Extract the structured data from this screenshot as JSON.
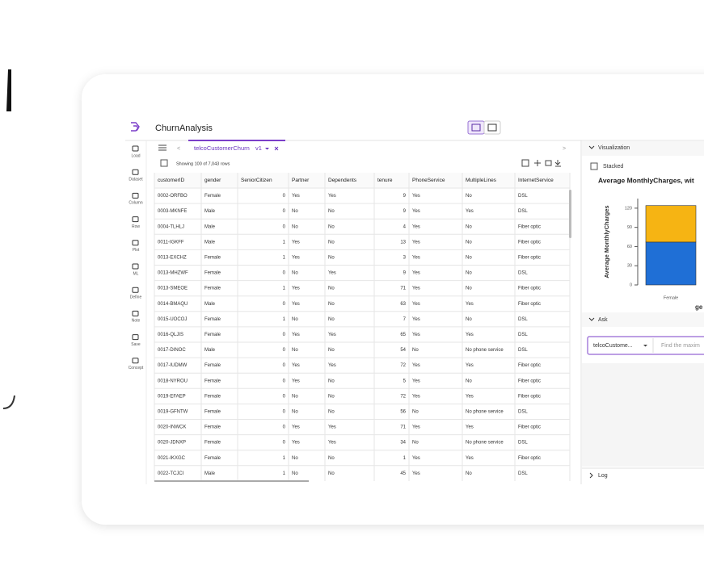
{
  "app": {
    "title": "ChurnAnalysis"
  },
  "sidebar": [
    "Load",
    "Dataset",
    "Column",
    "Row",
    "Plot",
    "ML",
    "Define",
    "Note",
    "Save",
    "Concept"
  ],
  "tab": {
    "name": "telcoCustomerChurn",
    "version": "v1"
  },
  "table": {
    "status": "Showing 100 of 7,043 rows",
    "columns": [
      "customerID",
      "gender",
      "SeniorCitizen",
      "Partner",
      "Dependents",
      "tenure",
      "PhoneService",
      "MultipleLines",
      "InternetService"
    ],
    "rows": [
      [
        "0002-ORFBO",
        "Female",
        0,
        "Yes",
        "Yes",
        9,
        "Yes",
        "No",
        "DSL"
      ],
      [
        "0003-MKNFE",
        "Male",
        0,
        "No",
        "No",
        9,
        "Yes",
        "Yes",
        "DSL"
      ],
      [
        "0004-TLHLJ",
        "Male",
        0,
        "No",
        "No",
        4,
        "Yes",
        "No",
        "Fiber optic"
      ],
      [
        "0011-IGKFF",
        "Male",
        1,
        "Yes",
        "No",
        13,
        "Yes",
        "No",
        "Fiber optic"
      ],
      [
        "0013-EXCHZ",
        "Female",
        1,
        "Yes",
        "No",
        3,
        "Yes",
        "No",
        "Fiber optic"
      ],
      [
        "0013-MHZWF",
        "Female",
        0,
        "No",
        "Yes",
        9,
        "Yes",
        "No",
        "DSL"
      ],
      [
        "0013-SMEOE",
        "Female",
        1,
        "Yes",
        "No",
        71,
        "Yes",
        "No",
        "Fiber optic"
      ],
      [
        "0014-BMAQU",
        "Male",
        0,
        "Yes",
        "No",
        63,
        "Yes",
        "Yes",
        "Fiber optic"
      ],
      [
        "0015-UOCOJ",
        "Female",
        1,
        "No",
        "No",
        7,
        "Yes",
        "No",
        "DSL"
      ],
      [
        "0016-QLJIS",
        "Female",
        0,
        "Yes",
        "Yes",
        65,
        "Yes",
        "Yes",
        "DSL"
      ],
      [
        "0017-DINOC",
        "Male",
        0,
        "No",
        "No",
        54,
        "No",
        "No phone service",
        "DSL"
      ],
      [
        "0017-IUDMW",
        "Female",
        0,
        "Yes",
        "Yes",
        72,
        "Yes",
        "Yes",
        "Fiber optic"
      ],
      [
        "0018-NYROU",
        "Female",
        0,
        "Yes",
        "No",
        5,
        "Yes",
        "No",
        "Fiber optic"
      ],
      [
        "0019-EFAEP",
        "Female",
        0,
        "No",
        "No",
        72,
        "Yes",
        "Yes",
        "Fiber optic"
      ],
      [
        "0019-GFNTW",
        "Female",
        0,
        "No",
        "No",
        56,
        "No",
        "No phone service",
        "DSL"
      ],
      [
        "0020-INWCK",
        "Female",
        0,
        "Yes",
        "Yes",
        71,
        "Yes",
        "Yes",
        "Fiber optic"
      ],
      [
        "0020-JDNXP",
        "Female",
        0,
        "Yes",
        "Yes",
        34,
        "No",
        "No phone service",
        "DSL"
      ],
      [
        "0021-IKXGC",
        "Female",
        1,
        "No",
        "No",
        1,
        "Yes",
        "Yes",
        "Fiber optic"
      ],
      [
        "0022-TCJCI",
        "Male",
        1,
        "No",
        "No",
        45,
        "Yes",
        "No",
        "DSL"
      ]
    ]
  },
  "visualization": {
    "header": "Visualization",
    "stacked_label": "Stacked",
    "chart": {
      "type": "bar",
      "title": "Average MonthlyCharges, wit",
      "y_label": "Average MonthlyCharges",
      "x_label": "ge",
      "categories": [
        "Female"
      ],
      "series": [
        {
          "color": "#1f6fd6",
          "values": [
            67
          ]
        },
        {
          "color": "#f6b413",
          "values": [
            57
          ]
        }
      ],
      "stacked": true,
      "ylim": [
        0,
        135
      ],
      "yticks": [
        0,
        30,
        60,
        90,
        120
      ]
    }
  },
  "ask": {
    "header": "Ask",
    "dataset": "telcoCustome...",
    "placeholder": "Find the maxim"
  },
  "log": {
    "header": "Log"
  }
}
